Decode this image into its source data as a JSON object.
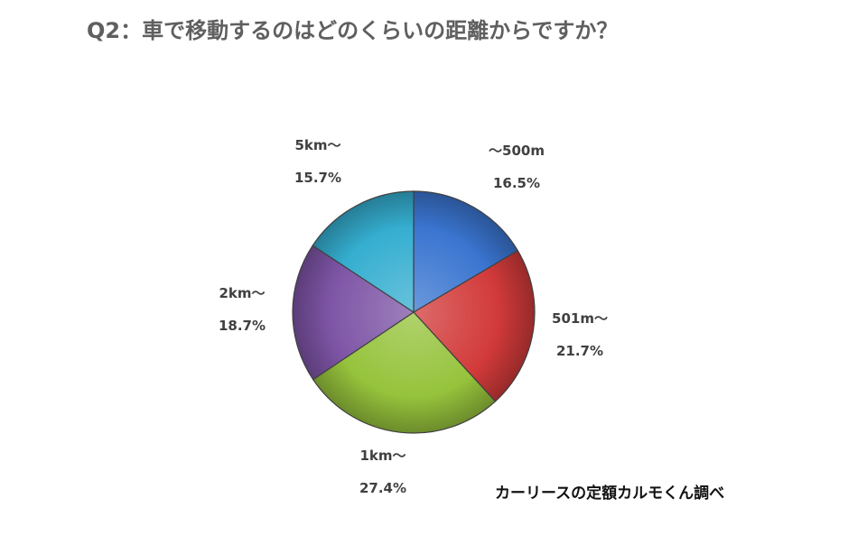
{
  "title": "Q2：車で移動するのはどのくらいの距離からですか？",
  "source_note": "カーリースの定額カルモくん調べ",
  "chart_data": {
    "type": "pie",
    "title": "Q2：車で移動するのはどのくらいの距離からですか？",
    "start": "12 o'clock, clockwise",
    "slices": [
      {
        "label": "～500m",
        "value": 16.5,
        "display": "16.5%",
        "color": "#3a75d0"
      },
      {
        "label": "501m～",
        "value": 21.7,
        "display": "21.7%",
        "color": "#d23a3a"
      },
      {
        "label": "1km～",
        "value": 27.4,
        "display": "27.4%",
        "color": "#96c33c"
      },
      {
        "label": "2km～",
        "value": 18.7,
        "display": "18.7%",
        "color": "#7e55a6"
      },
      {
        "label": "5km～",
        "value": 15.7,
        "display": "15.7%",
        "color": "#35aed0"
      }
    ]
  }
}
